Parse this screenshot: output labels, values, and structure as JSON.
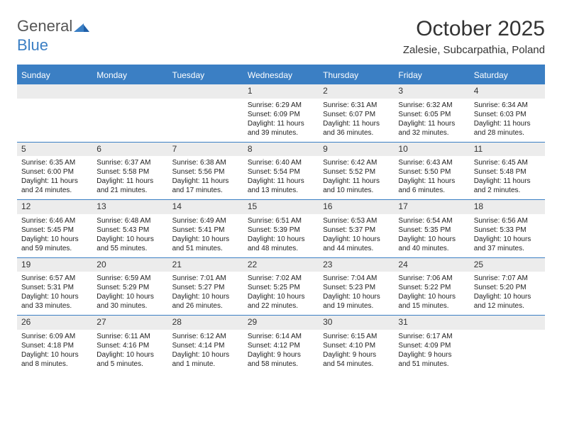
{
  "logo": {
    "text1": "General",
    "text2": "Blue",
    "text1_color": "#666666",
    "text2_color": "#3b7fc4"
  },
  "title": "October 2025",
  "subtitle": "Zalesie, Subcarpathia, Poland",
  "colors": {
    "accent": "#3b7fc4",
    "header_bg": "#3b7fc4",
    "header_text": "#ffffff",
    "date_bg": "#ececec",
    "body_text": "#222222",
    "page_bg": "#ffffff",
    "rule": "#3b7fc4"
  },
  "day_names": [
    "Sunday",
    "Monday",
    "Tuesday",
    "Wednesday",
    "Thursday",
    "Friday",
    "Saturday"
  ],
  "weeks": [
    [
      {
        "date": "",
        "sunrise": "",
        "sunset": "",
        "daylight1": "",
        "daylight2": ""
      },
      {
        "date": "",
        "sunrise": "",
        "sunset": "",
        "daylight1": "",
        "daylight2": ""
      },
      {
        "date": "",
        "sunrise": "",
        "sunset": "",
        "daylight1": "",
        "daylight2": ""
      },
      {
        "date": "1",
        "sunrise": "Sunrise: 6:29 AM",
        "sunset": "Sunset: 6:09 PM",
        "daylight1": "Daylight: 11 hours",
        "daylight2": "and 39 minutes."
      },
      {
        "date": "2",
        "sunrise": "Sunrise: 6:31 AM",
        "sunset": "Sunset: 6:07 PM",
        "daylight1": "Daylight: 11 hours",
        "daylight2": "and 36 minutes."
      },
      {
        "date": "3",
        "sunrise": "Sunrise: 6:32 AM",
        "sunset": "Sunset: 6:05 PM",
        "daylight1": "Daylight: 11 hours",
        "daylight2": "and 32 minutes."
      },
      {
        "date": "4",
        "sunrise": "Sunrise: 6:34 AM",
        "sunset": "Sunset: 6:03 PM",
        "daylight1": "Daylight: 11 hours",
        "daylight2": "and 28 minutes."
      }
    ],
    [
      {
        "date": "5",
        "sunrise": "Sunrise: 6:35 AM",
        "sunset": "Sunset: 6:00 PM",
        "daylight1": "Daylight: 11 hours",
        "daylight2": "and 24 minutes."
      },
      {
        "date": "6",
        "sunrise": "Sunrise: 6:37 AM",
        "sunset": "Sunset: 5:58 PM",
        "daylight1": "Daylight: 11 hours",
        "daylight2": "and 21 minutes."
      },
      {
        "date": "7",
        "sunrise": "Sunrise: 6:38 AM",
        "sunset": "Sunset: 5:56 PM",
        "daylight1": "Daylight: 11 hours",
        "daylight2": "and 17 minutes."
      },
      {
        "date": "8",
        "sunrise": "Sunrise: 6:40 AM",
        "sunset": "Sunset: 5:54 PM",
        "daylight1": "Daylight: 11 hours",
        "daylight2": "and 13 minutes."
      },
      {
        "date": "9",
        "sunrise": "Sunrise: 6:42 AM",
        "sunset": "Sunset: 5:52 PM",
        "daylight1": "Daylight: 11 hours",
        "daylight2": "and 10 minutes."
      },
      {
        "date": "10",
        "sunrise": "Sunrise: 6:43 AM",
        "sunset": "Sunset: 5:50 PM",
        "daylight1": "Daylight: 11 hours",
        "daylight2": "and 6 minutes."
      },
      {
        "date": "11",
        "sunrise": "Sunrise: 6:45 AM",
        "sunset": "Sunset: 5:48 PM",
        "daylight1": "Daylight: 11 hours",
        "daylight2": "and 2 minutes."
      }
    ],
    [
      {
        "date": "12",
        "sunrise": "Sunrise: 6:46 AM",
        "sunset": "Sunset: 5:45 PM",
        "daylight1": "Daylight: 10 hours",
        "daylight2": "and 59 minutes."
      },
      {
        "date": "13",
        "sunrise": "Sunrise: 6:48 AM",
        "sunset": "Sunset: 5:43 PM",
        "daylight1": "Daylight: 10 hours",
        "daylight2": "and 55 minutes."
      },
      {
        "date": "14",
        "sunrise": "Sunrise: 6:49 AM",
        "sunset": "Sunset: 5:41 PM",
        "daylight1": "Daylight: 10 hours",
        "daylight2": "and 51 minutes."
      },
      {
        "date": "15",
        "sunrise": "Sunrise: 6:51 AM",
        "sunset": "Sunset: 5:39 PM",
        "daylight1": "Daylight: 10 hours",
        "daylight2": "and 48 minutes."
      },
      {
        "date": "16",
        "sunrise": "Sunrise: 6:53 AM",
        "sunset": "Sunset: 5:37 PM",
        "daylight1": "Daylight: 10 hours",
        "daylight2": "and 44 minutes."
      },
      {
        "date": "17",
        "sunrise": "Sunrise: 6:54 AM",
        "sunset": "Sunset: 5:35 PM",
        "daylight1": "Daylight: 10 hours",
        "daylight2": "and 40 minutes."
      },
      {
        "date": "18",
        "sunrise": "Sunrise: 6:56 AM",
        "sunset": "Sunset: 5:33 PM",
        "daylight1": "Daylight: 10 hours",
        "daylight2": "and 37 minutes."
      }
    ],
    [
      {
        "date": "19",
        "sunrise": "Sunrise: 6:57 AM",
        "sunset": "Sunset: 5:31 PM",
        "daylight1": "Daylight: 10 hours",
        "daylight2": "and 33 minutes."
      },
      {
        "date": "20",
        "sunrise": "Sunrise: 6:59 AM",
        "sunset": "Sunset: 5:29 PM",
        "daylight1": "Daylight: 10 hours",
        "daylight2": "and 30 minutes."
      },
      {
        "date": "21",
        "sunrise": "Sunrise: 7:01 AM",
        "sunset": "Sunset: 5:27 PM",
        "daylight1": "Daylight: 10 hours",
        "daylight2": "and 26 minutes."
      },
      {
        "date": "22",
        "sunrise": "Sunrise: 7:02 AM",
        "sunset": "Sunset: 5:25 PM",
        "daylight1": "Daylight: 10 hours",
        "daylight2": "and 22 minutes."
      },
      {
        "date": "23",
        "sunrise": "Sunrise: 7:04 AM",
        "sunset": "Sunset: 5:23 PM",
        "daylight1": "Daylight: 10 hours",
        "daylight2": "and 19 minutes."
      },
      {
        "date": "24",
        "sunrise": "Sunrise: 7:06 AM",
        "sunset": "Sunset: 5:22 PM",
        "daylight1": "Daylight: 10 hours",
        "daylight2": "and 15 minutes."
      },
      {
        "date": "25",
        "sunrise": "Sunrise: 7:07 AM",
        "sunset": "Sunset: 5:20 PM",
        "daylight1": "Daylight: 10 hours",
        "daylight2": "and 12 minutes."
      }
    ],
    [
      {
        "date": "26",
        "sunrise": "Sunrise: 6:09 AM",
        "sunset": "Sunset: 4:18 PM",
        "daylight1": "Daylight: 10 hours",
        "daylight2": "and 8 minutes."
      },
      {
        "date": "27",
        "sunrise": "Sunrise: 6:11 AM",
        "sunset": "Sunset: 4:16 PM",
        "daylight1": "Daylight: 10 hours",
        "daylight2": "and 5 minutes."
      },
      {
        "date": "28",
        "sunrise": "Sunrise: 6:12 AM",
        "sunset": "Sunset: 4:14 PM",
        "daylight1": "Daylight: 10 hours",
        "daylight2": "and 1 minute."
      },
      {
        "date": "29",
        "sunrise": "Sunrise: 6:14 AM",
        "sunset": "Sunset: 4:12 PM",
        "daylight1": "Daylight: 9 hours",
        "daylight2": "and 58 minutes."
      },
      {
        "date": "30",
        "sunrise": "Sunrise: 6:15 AM",
        "sunset": "Sunset: 4:10 PM",
        "daylight1": "Daylight: 9 hours",
        "daylight2": "and 54 minutes."
      },
      {
        "date": "31",
        "sunrise": "Sunrise: 6:17 AM",
        "sunset": "Sunset: 4:09 PM",
        "daylight1": "Daylight: 9 hours",
        "daylight2": "and 51 minutes."
      },
      {
        "date": "",
        "sunrise": "",
        "sunset": "",
        "daylight1": "",
        "daylight2": ""
      }
    ]
  ]
}
